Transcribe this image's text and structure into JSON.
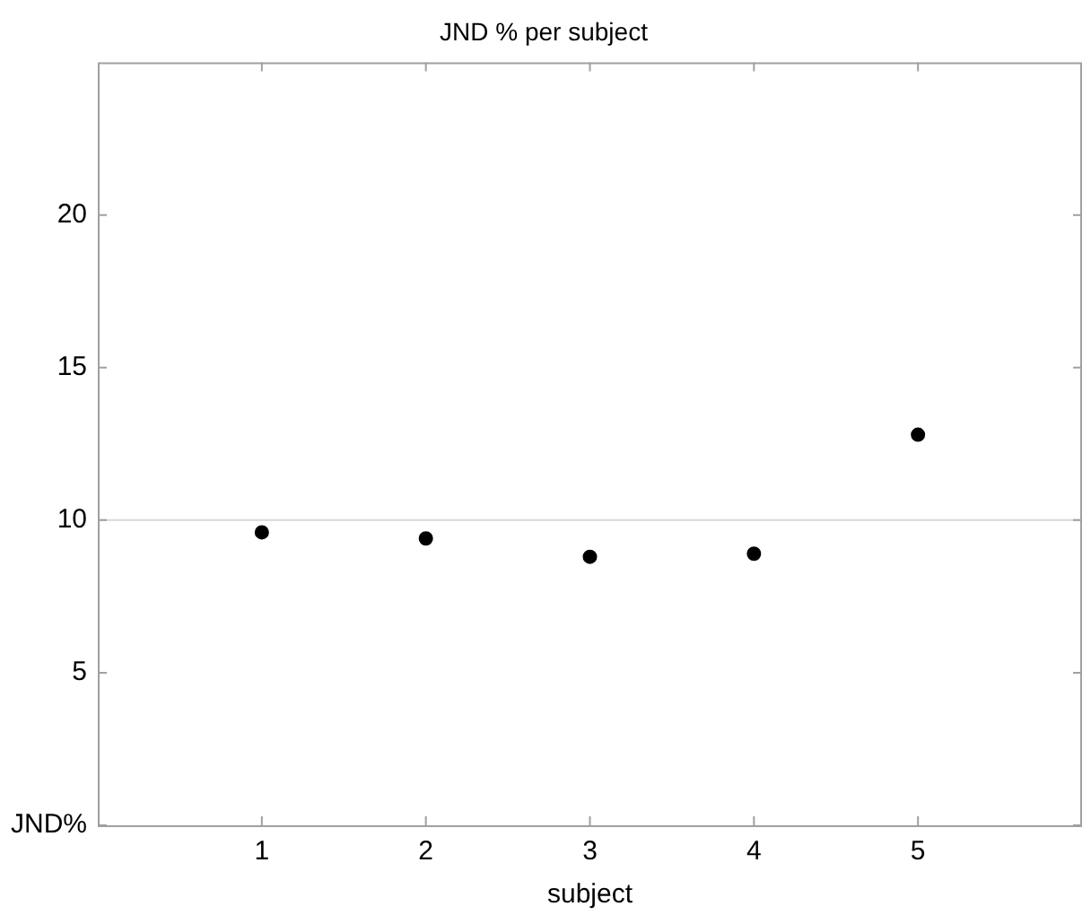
{
  "chart_data": {
    "type": "scatter",
    "title": "JND % per subject",
    "xlabel": "subject",
    "x": [
      1,
      2,
      3,
      4,
      5
    ],
    "series": [
      {
        "color": "#000000",
        "values": [
          9.6,
          9.4,
          8.8,
          8.9,
          12.8
        ]
      }
    ],
    "xlim": [
      0,
      6
    ],
    "xticks": [
      1,
      2,
      3,
      4,
      5
    ],
    "ylim": [
      0,
      25
    ],
    "yticks": [
      {
        "value": 0,
        "label": "JND%"
      },
      5,
      10,
      15,
      20
    ],
    "ref_lines": [
      {
        "axis": "y",
        "value": 10,
        "color": "#d9d9d9"
      }
    ],
    "marker": "circle",
    "grid": false,
    "legend": false
  }
}
